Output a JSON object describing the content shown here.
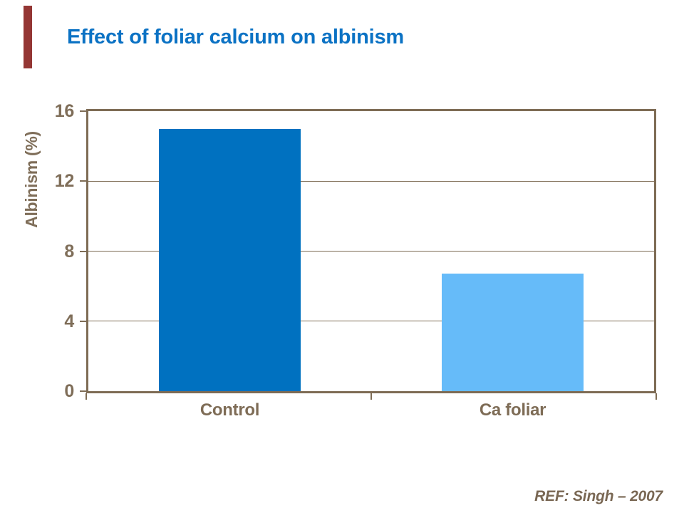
{
  "slide": {
    "title": "Effect of foliar calcium on albinism",
    "reference": "REF: Singh – 2007"
  },
  "colors": {
    "title_text": "#0B72C4",
    "accent_bar": "#943634",
    "axis_line": "#7E6C55",
    "axis_text": "#7F6E59",
    "category_text": "#7E6C56",
    "reference_text": "#796753"
  },
  "chart_data": {
    "type": "bar",
    "title": "Effect of foliar calcium on albinism",
    "categories": [
      "Control",
      "Ca foliar"
    ],
    "values": [
      15,
      6.7
    ],
    "xlabel": "",
    "ylabel": "Albinism (%)",
    "ylim": [
      0,
      16
    ],
    "yticks": [
      0,
      4,
      8,
      12,
      16
    ],
    "grid": true,
    "legend": "none",
    "bar_colors": [
      "#0071C0",
      "#66BBF9"
    ],
    "annotation": "REF: Singh – 2007"
  }
}
